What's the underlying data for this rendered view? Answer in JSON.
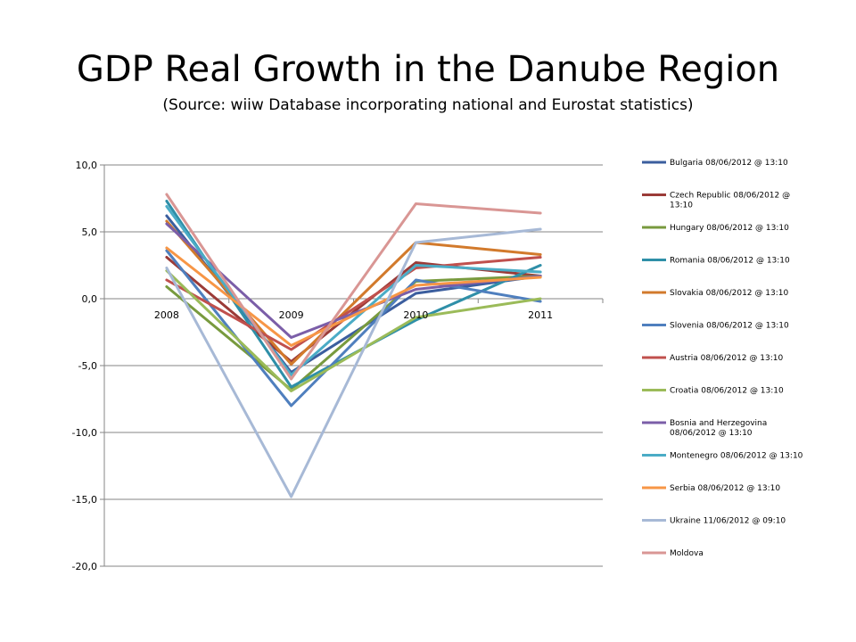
{
  "slide": {
    "title": "GDP Real Growth in the Danube Region",
    "subtitle": "(Source: wiiw Database incorporating national and Eurostat statistics)"
  },
  "chart_data": {
    "type": "line",
    "title": "",
    "xlabel": "",
    "ylabel": "",
    "categories": [
      "2008",
      "2009",
      "2010",
      "2011"
    ],
    "ylim": [
      -20,
      10
    ],
    "y_ticks": [
      10,
      5,
      0,
      -5,
      -10,
      -15,
      -20
    ],
    "y_tick_labels": [
      "10,0",
      "5,0",
      "0,0",
      "-5,0",
      "-10,0",
      "-15,0",
      "-20,0"
    ],
    "grid": true,
    "legend_position": "right",
    "series": [
      {
        "name": "Bulgaria 08/06/2012 @ 13:10",
        "color": "#3b5e9e",
        "values": [
          6.2,
          -5.5,
          0.4,
          1.7
        ]
      },
      {
        "name": "Czech Republic 08/06/2012 @ 13:10",
        "color": "#9b3b38",
        "values": [
          3.1,
          -4.7,
          2.7,
          1.7
        ]
      },
      {
        "name": "Hungary 08/06/2012 @ 13:10",
        "color": "#789a3e",
        "values": [
          0.9,
          -6.8,
          1.3,
          1.7
        ]
      },
      {
        "name": "Romania 08/06/2012 @ 13:10",
        "color": "#2f8fa8",
        "values": [
          7.3,
          -6.6,
          -1.6,
          2.5
        ]
      },
      {
        "name": "Slovakia 08/06/2012 @ 13:10",
        "color": "#d27a2c",
        "values": [
          5.8,
          -4.9,
          4.2,
          3.3
        ]
      },
      {
        "name": "Slovenia 08/06/2012 @ 13:10",
        "color": "#4f7fbe",
        "values": [
          3.6,
          -8.0,
          1.4,
          -0.2
        ]
      },
      {
        "name": "Austria 08/06/2012 @ 13:10",
        "color": "#c0504d",
        "values": [
          1.4,
          -3.8,
          2.3,
          3.1
        ]
      },
      {
        "name": "Croatia 08/06/2012 @ 13:10",
        "color": "#9bbb59",
        "values": [
          2.1,
          -6.9,
          -1.4,
          0.0
        ]
      },
      {
        "name": "Bosnia and Herzegovina 08/06/2012 @ 13:10",
        "color": "#7b5ea8",
        "values": [
          5.6,
          -2.9,
          0.7,
          1.7
        ]
      },
      {
        "name": "Montenegro 08/06/2012 @ 13:10",
        "color": "#4bacc6",
        "values": [
          6.9,
          -5.7,
          2.5,
          2.0
        ]
      },
      {
        "name": "Serbia 08/06/2012 @ 13:10",
        "color": "#f79646",
        "values": [
          3.8,
          -3.5,
          1.0,
          1.6
        ]
      },
      {
        "name": "Ukraine 11/06/2012 @ 09:10",
        "color": "#a7b9d6",
        "values": [
          2.3,
          -14.8,
          4.2,
          5.2
        ]
      },
      {
        "name": "Moldova",
        "color": "#d99694",
        "values": [
          7.8,
          -6.0,
          7.1,
          6.4
        ]
      }
    ]
  }
}
